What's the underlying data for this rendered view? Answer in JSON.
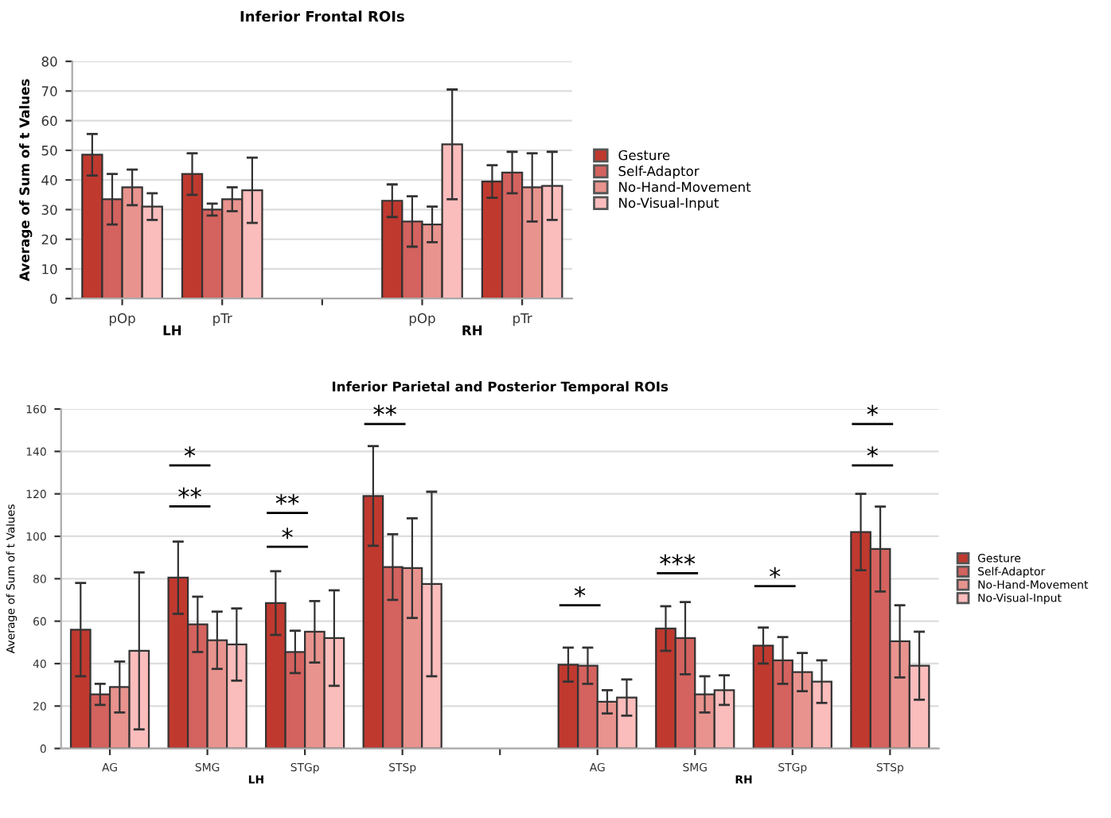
{
  "chart_data": [
    {
      "type": "bar",
      "title": "Inferior Frontal ROIs",
      "ylabel": "Average of Sum of t Values",
      "categories": [
        "pOp",
        "pTr",
        null,
        "pOp",
        "pTr"
      ],
      "series": [
        {
          "name": "Gesture",
          "color": "#c0392f",
          "values": [
            48.5,
            42,
            null,
            33,
            39.5
          ],
          "errors": [
            7,
            7,
            null,
            5.5,
            5.5
          ]
        },
        {
          "name": "Self-Adaptor",
          "color": "#d4625e",
          "values": [
            33.5,
            30,
            null,
            26,
            42.5
          ],
          "errors": [
            8.5,
            2,
            null,
            8.5,
            7
          ]
        },
        {
          "name": "No-Hand-Movement",
          "color": "#e8938e",
          "values": [
            37.5,
            33.5,
            null,
            25,
            37.5
          ],
          "errors": [
            6,
            4,
            null,
            6,
            11.5
          ]
        },
        {
          "name": "No-Visual-Input",
          "color": "#fbbcbc",
          "values": [
            31,
            36.5,
            null,
            52,
            38
          ],
          "errors": [
            4.5,
            11,
            null,
            18.5,
            11.5
          ]
        }
      ],
      "ylim": [
        0,
        80
      ],
      "yticks": [
        0,
        10,
        20,
        30,
        40,
        50,
        60,
        70,
        80
      ],
      "grid": "y",
      "legend": "right",
      "annotations": [
        "LH",
        "RH"
      ]
    },
    {
      "type": "bar",
      "title": "Inferior Parietal and Posterior Temporal ROIs",
      "ylabel": "Average of Sum of t Values",
      "categories": [
        "AG",
        "SMG",
        "STGp",
        "STSp",
        null,
        "AG",
        "SMG",
        "STGp",
        "STSp"
      ],
      "series": [
        {
          "name": "Gesture",
          "color": "#c0392f",
          "values": [
            56,
            80.5,
            68.5,
            119,
            null,
            39.5,
            56.5,
            48.5,
            102
          ],
          "errors": [
            22,
            17,
            15,
            23.5,
            null,
            8,
            10.5,
            8.5,
            18
          ]
        },
        {
          "name": "Self-Adaptor",
          "color": "#d4625e",
          "values": [
            25.5,
            58.5,
            45.5,
            85.5,
            null,
            39,
            52,
            41.5,
            94
          ],
          "errors": [
            5,
            13,
            10,
            15.5,
            null,
            8.5,
            17,
            11,
            20
          ]
        },
        {
          "name": "No-Hand-Movement",
          "color": "#e8938e",
          "values": [
            29,
            51,
            55,
            85,
            null,
            22,
            25.5,
            36,
            50.5
          ],
          "errors": [
            12,
            13.5,
            14.5,
            23.5,
            null,
            5.5,
            8.5,
            9,
            17
          ]
        },
        {
          "name": "No-Visual-Input",
          "color": "#fbbcbc",
          "values": [
            46,
            49,
            52,
            77.5,
            null,
            24,
            27.5,
            31.5,
            39
          ],
          "errors": [
            37,
            17,
            22.5,
            43.5,
            null,
            8.5,
            7,
            10,
            16
          ]
        }
      ],
      "ylim": [
        0,
        160
      ],
      "yticks": [
        0,
        20,
        40,
        60,
        80,
        100,
        120,
        140,
        160
      ],
      "grid": "y",
      "legend": "right",
      "annotations": [
        "LH",
        "RH",
        "*",
        "**",
        "**",
        "*",
        "**",
        "*",
        "***",
        "*",
        "*",
        "*"
      ]
    }
  ]
}
